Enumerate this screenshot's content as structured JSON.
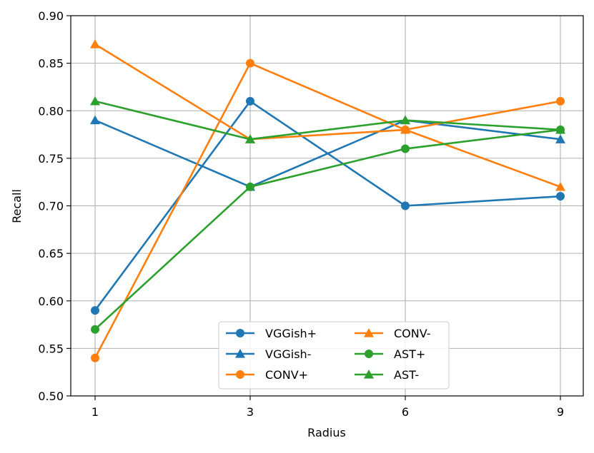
{
  "chart_data": {
    "type": "line",
    "title": "",
    "xlabel": "Radius",
    "ylabel": "Recall",
    "categories": [
      "1",
      "3",
      "6",
      "9"
    ],
    "ylim": [
      0.5,
      0.9
    ],
    "yticks": [
      0.5,
      0.55,
      0.6,
      0.65,
      0.7,
      0.75,
      0.8,
      0.85,
      0.9
    ],
    "ytick_labels": [
      "0.50",
      "0.55",
      "0.60",
      "0.65",
      "0.70",
      "0.75",
      "0.80",
      "0.85",
      "0.90"
    ],
    "grid": true,
    "legend_position": "bottom-center",
    "series": [
      {
        "name": "VGGish+",
        "color": "#1f77b4",
        "marker": "circle",
        "values": [
          0.59,
          0.81,
          0.7,
          0.71
        ]
      },
      {
        "name": "VGGish-",
        "color": "#1f77b4",
        "marker": "triangle",
        "values": [
          0.79,
          0.72,
          0.79,
          0.77
        ]
      },
      {
        "name": "CONV+",
        "color": "#ff7f0e",
        "marker": "circle",
        "values": [
          0.54,
          0.85,
          0.78,
          0.81
        ]
      },
      {
        "name": "CONV-",
        "color": "#ff7f0e",
        "marker": "triangle",
        "values": [
          0.87,
          0.77,
          0.78,
          0.72
        ]
      },
      {
        "name": "AST+",
        "color": "#2ca02c",
        "marker": "circle",
        "values": [
          0.57,
          0.72,
          0.76,
          0.78
        ]
      },
      {
        "name": "AST-",
        "color": "#2ca02c",
        "marker": "triangle",
        "values": [
          0.81,
          0.77,
          0.79,
          0.78
        ]
      }
    ]
  }
}
